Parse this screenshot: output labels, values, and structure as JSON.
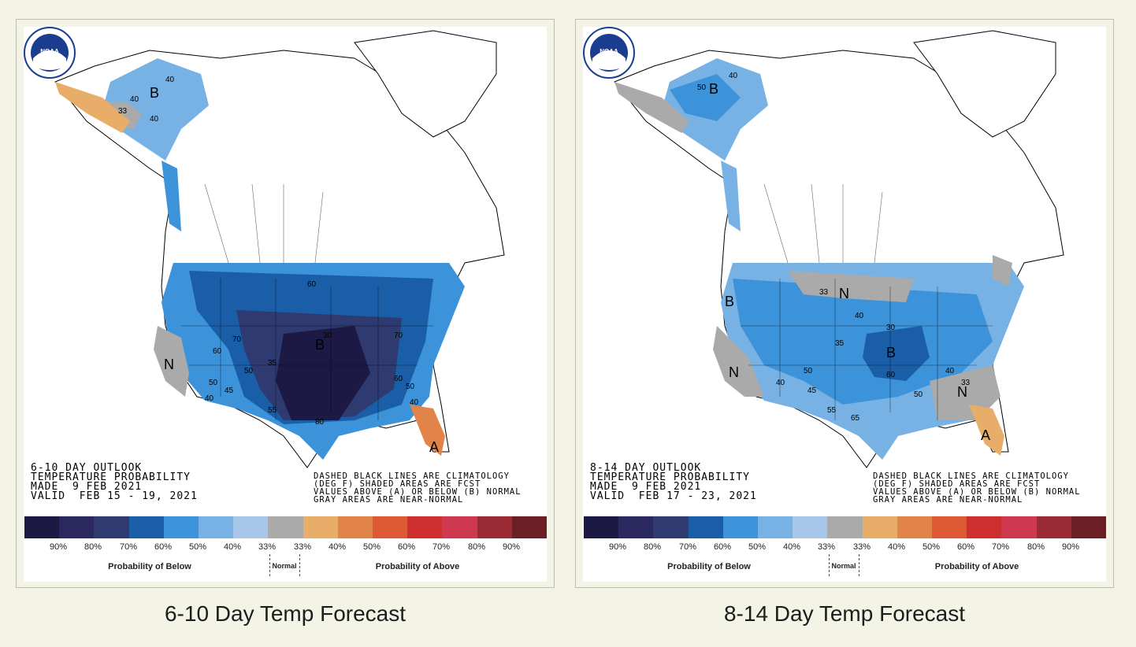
{
  "panels": [
    {
      "caption": "6-10 Day Temp Forecast",
      "outlook_lines": [
        "6-10 DAY OUTLOOK",
        "TEMPERATURE PROBABILITY",
        "MADE  9 FEB 2021",
        "VALID  FEB 15 - 19, 2021"
      ],
      "note_lines": [
        "DASHED BLACK LINES ARE CLIMATOLOGY",
        "(DEG F) SHADED AREAS ARE FCST",
        "VALUES ABOVE (A) OR BELOW (B) NORMAL",
        "GRAY AREAS ARE NEAR-NORMAL"
      ],
      "map_labels": [
        "B",
        "B",
        "N",
        "N",
        "A",
        "40",
        "40",
        "40",
        "33",
        "60",
        "70",
        "50",
        "40",
        "45",
        "35",
        "50",
        "55",
        "30",
        "60",
        "50",
        "60",
        "40",
        "80",
        "70"
      ]
    },
    {
      "caption": "8-14 Day Temp Forecast",
      "outlook_lines": [
        "8-14 DAY OUTLOOK",
        "TEMPERATURE PROBABILITY",
        "MADE  9 FEB 2021",
        "VALID  FEB 17 - 23, 2021"
      ],
      "note_lines": [
        "DASHED BLACK LINES ARE CLIMATOLOGY",
        "(DEG F) SHADED AREAS ARE FCST",
        "VALUES ABOVE (A) OR BELOW (B) NORMAL",
        "GRAY AREAS ARE NEAR-NORMAL"
      ],
      "map_labels": [
        "B",
        "B",
        "B",
        "N",
        "N",
        "N",
        "A",
        "40",
        "50",
        "33",
        "40",
        "30",
        "35",
        "50",
        "40",
        "45",
        "55",
        "60",
        "50",
        "65",
        "40",
        "33"
      ]
    }
  ],
  "legend": {
    "colors": [
      "#1c1a45",
      "#2b2860",
      "#2e3a70",
      "#1a5ea8",
      "#3c93da",
      "#78b2e4",
      "#a7c6ea",
      "#aaaaaa",
      "#e8ad68",
      "#e2844a",
      "#de5a35",
      "#cd2f2e",
      "#ce3950",
      "#9a2a33",
      "#6b1e24"
    ],
    "ticks": [
      "90%",
      "80%",
      "70%",
      "60%",
      "50%",
      "40%",
      "33%",
      "33%",
      "40%",
      "50%",
      "60%",
      "70%",
      "80%",
      "90%"
    ],
    "below_label": "Probability of Below",
    "normal_label": "Normal",
    "above_label": "Probability of Above"
  },
  "logo": {
    "text": "NOAA"
  }
}
